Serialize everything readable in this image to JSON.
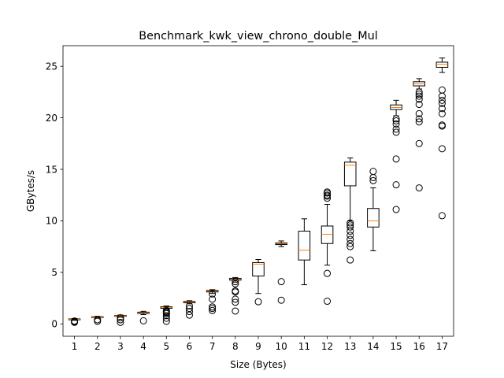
{
  "chart_data": {
    "type": "box",
    "title": "Benchmark_kwk_view_chrono_double_Mul",
    "xlabel": "Size (Bytes)",
    "ylabel": "GBytes/s",
    "ylim": [
      -1.2,
      27.0
    ],
    "yticks": [
      0,
      5,
      10,
      15,
      20,
      25
    ],
    "grid": false,
    "colors": {
      "box": "#000000",
      "median": "#ff7f0e",
      "flier": "#000000"
    },
    "boxes": [
      {
        "category": "1",
        "whisker_low": 0.35,
        "q1": 0.4,
        "median": 0.44,
        "q3": 0.48,
        "whisker_high": 0.52,
        "outliers": [
          0.15,
          0.22,
          0.28
        ]
      },
      {
        "category": "2",
        "whisker_low": 0.56,
        "q1": 0.62,
        "median": 0.66,
        "q3": 0.7,
        "whisker_high": 0.74,
        "outliers": [
          0.25,
          0.4
        ]
      },
      {
        "category": "3",
        "whisker_low": 0.66,
        "q1": 0.74,
        "median": 0.78,
        "q3": 0.82,
        "whisker_high": 0.86,
        "outliers": [
          0.15,
          0.4,
          0.6
        ]
      },
      {
        "category": "4",
        "whisker_low": 0.9,
        "q1": 1.02,
        "median": 1.08,
        "q3": 1.14,
        "whisker_high": 1.22,
        "outliers": [
          0.3
        ]
      },
      {
        "category": "5",
        "whisker_low": 1.4,
        "q1": 1.52,
        "median": 1.6,
        "q3": 1.66,
        "whisker_high": 1.74,
        "outliers": [
          0.25,
          0.55,
          0.8,
          1.0,
          1.1,
          1.2,
          1.3
        ]
      },
      {
        "category": "6",
        "whisker_low": 1.95,
        "q1": 2.05,
        "median": 2.12,
        "q3": 2.18,
        "whisker_high": 2.25,
        "outliers": [
          0.85,
          1.2,
          1.5,
          1.75
        ]
      },
      {
        "category": "7",
        "whisker_low": 2.95,
        "q1": 3.1,
        "median": 3.18,
        "q3": 3.25,
        "whisker_high": 3.32,
        "outliers": [
          1.3,
          1.5,
          1.65,
          2.4,
          2.9
        ]
      },
      {
        "category": "8",
        "whisker_low": 4.05,
        "q1": 4.25,
        "median": 4.35,
        "q3": 4.42,
        "whisker_high": 4.5,
        "outliers": [
          1.25,
          2.1,
          2.4,
          3.1,
          3.2,
          3.9,
          4.1
        ]
      },
      {
        "category": "9",
        "whisker_low": 2.95,
        "q1": 4.65,
        "median": 5.8,
        "q3": 5.95,
        "whisker_high": 6.25,
        "outliers": [
          2.15
        ]
      },
      {
        "category": "10",
        "whisker_low": 7.5,
        "q1": 7.7,
        "median": 7.78,
        "q3": 7.85,
        "whisker_high": 8.05,
        "outliers": [
          2.3,
          4.1
        ]
      },
      {
        "category": "11",
        "whisker_low": 3.8,
        "q1": 6.2,
        "median": 7.15,
        "q3": 9.0,
        "whisker_high": 10.2,
        "outliers": []
      },
      {
        "category": "12",
        "whisker_low": 5.7,
        "q1": 7.8,
        "median": 8.7,
        "q3": 9.5,
        "whisker_high": 11.6,
        "outliers": [
          2.2,
          4.9,
          12.2,
          12.4,
          12.5,
          12.7,
          12.8
        ]
      },
      {
        "category": "13",
        "whisker_low": 10.0,
        "q1": 13.4,
        "median": 15.4,
        "q3": 15.7,
        "whisker_high": 16.1,
        "outliers": [
          6.2,
          7.5,
          7.8,
          8.2,
          8.6,
          9.0,
          9.4,
          9.6,
          9.8
        ]
      },
      {
        "category": "14",
        "whisker_low": 7.1,
        "q1": 9.4,
        "median": 10.0,
        "q3": 11.2,
        "whisker_high": 13.2,
        "outliers": [
          13.9,
          14.2,
          14.8
        ]
      },
      {
        "category": "15",
        "whisker_low": 20.2,
        "q1": 20.8,
        "median": 21.0,
        "q3": 21.25,
        "whisker_high": 21.7,
        "outliers": [
          11.1,
          13.5,
          16.0,
          18.6,
          18.9,
          19.4,
          19.7,
          19.9
        ]
      },
      {
        "category": "16",
        "whisker_low": 22.8,
        "q1": 23.1,
        "median": 23.3,
        "q3": 23.5,
        "whisker_high": 23.8,
        "outliers": [
          13.2,
          17.5,
          19.6,
          19.9,
          20.4,
          21.3,
          21.8,
          22.1,
          22.3,
          22.5
        ]
      },
      {
        "category": "17",
        "whisker_low": 24.4,
        "q1": 24.9,
        "median": 25.2,
        "q3": 25.4,
        "whisker_high": 25.8,
        "outliers": [
          10.5,
          17.0,
          19.2,
          19.3,
          20.4,
          20.9,
          21.4,
          21.7,
          22.1,
          22.7
        ]
      }
    ]
  }
}
